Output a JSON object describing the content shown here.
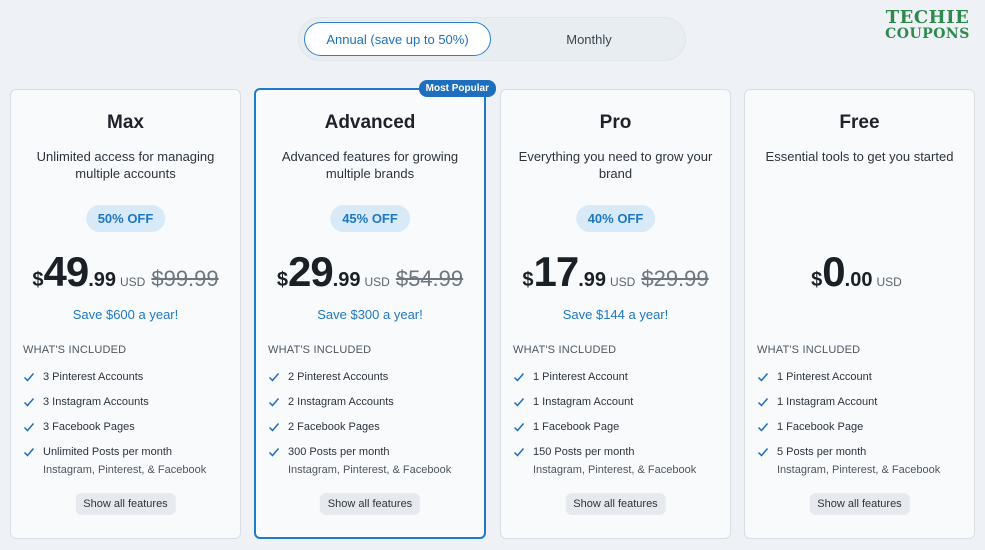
{
  "toggle": {
    "annual": "Annual (save up to 50%)",
    "monthly": "Monthly"
  },
  "logo": {
    "line1": "TECHIE",
    "line2": "COUPONS"
  },
  "popular_badge": "Most Popular",
  "included_label": "WHAT'S INCLUDED",
  "show_all": "Show all features",
  "colors": {
    "accent": "#1f6fbf",
    "logo": "#2e8a4a",
    "badge_bg": "#d8eaf8"
  },
  "plans": [
    {
      "name": "Max",
      "desc": "Unlimited access for managing multiple accounts",
      "discount": "50% OFF",
      "currency": "$",
      "whole": "49",
      "cents": ".99",
      "code": "USD",
      "old": "$99.99",
      "save": "Save $600 a year!",
      "features": [
        "3 Pinterest Accounts",
        "3 Instagram Accounts",
        "3 Facebook Pages",
        "Unlimited Posts per month"
      ],
      "features_sub": "Instagram, Pinterest, & Facebook"
    },
    {
      "name": "Advanced",
      "desc": "Advanced features for growing multiple brands",
      "discount": "45% OFF",
      "currency": "$",
      "whole": "29",
      "cents": ".99",
      "code": "USD",
      "old": "$54.99",
      "save": "Save $300 a year!",
      "features": [
        "2 Pinterest Accounts",
        "2 Instagram Accounts",
        "2 Facebook Pages",
        "300 Posts per month"
      ],
      "features_sub": "Instagram, Pinterest, & Facebook"
    },
    {
      "name": "Pro",
      "desc": "Everything you need to grow your brand",
      "discount": "40% OFF",
      "currency": "$",
      "whole": "17",
      "cents": ".99",
      "code": "USD",
      "old": "$29.99",
      "save": "Save $144 a year!",
      "features": [
        "1 Pinterest Account",
        "1 Instagram Account",
        "1 Facebook Page",
        "150 Posts per month"
      ],
      "features_sub": "Instagram, Pinterest, & Facebook"
    },
    {
      "name": "Free",
      "desc": "Essential tools to get you started",
      "currency": "$",
      "whole": "0",
      "cents": ".00",
      "code": "USD",
      "features": [
        "1 Pinterest Account",
        "1 Instagram Account",
        "1 Facebook Page",
        "5 Posts per month"
      ],
      "features_sub": "Instagram, Pinterest, & Facebook"
    }
  ]
}
